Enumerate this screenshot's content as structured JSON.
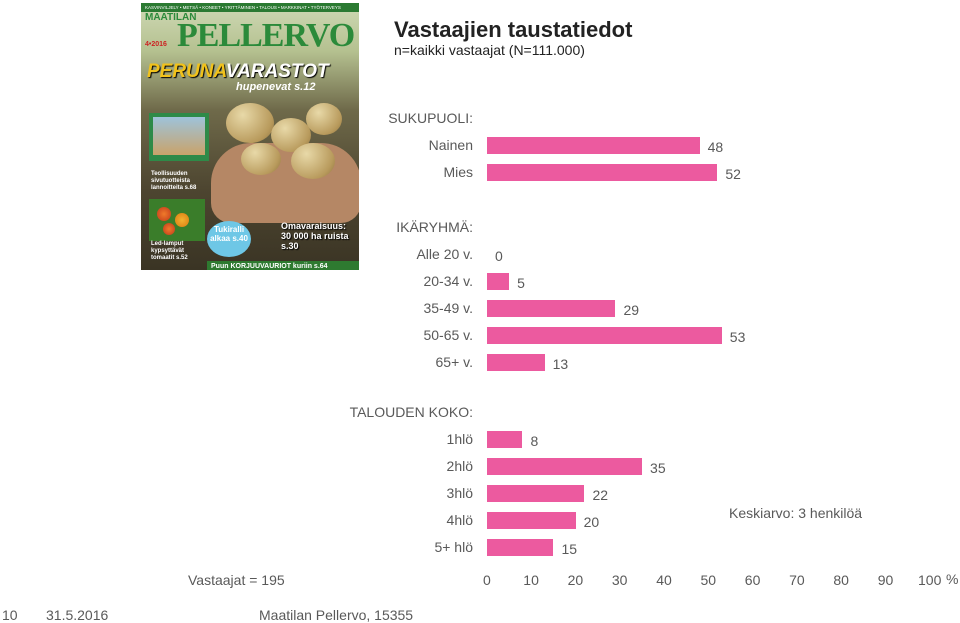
{
  "title": "Vastaajien taustatiedot",
  "subtitle": "n=kaikki vastaajat (N=111.000)",
  "respondents": "Vastaajat = 195",
  "mean_note": "Keskiarvo: 3 henkilöä",
  "footer": {
    "page": "10",
    "date": "31.5.2016",
    "source": "Maatilan Pellervo, 15355"
  },
  "cover": {
    "topbar": "KASVINVILJELY • METSÄ • KONEET • YRITTÄMINEN • TALOUS • MARKKINAT • TYÖTERVEYS",
    "mast_small": "MAATILAN",
    "mast_big": "PELLERVO",
    "issue": "4•2016",
    "headline_a": "PERUNA",
    "headline_b": "VARASTOT",
    "headline_2": "hupenevat s.12",
    "teaser1": "Teollisuuden sivutuotteista lannoitteita s.68",
    "teaser2": "Led-lamput kypsyttävät tomaatit s.52",
    "bubble": "Tukiralli alkaa s.40",
    "teaser3": "Omavaraisuus: 30 000 ha ruista s.30",
    "bottom": "Puun KORJUUVAURIOT kuriin s.64"
  },
  "chart_data": {
    "type": "bar",
    "orientation": "horizontal",
    "unit": "%",
    "xlim": [
      0,
      100
    ],
    "xticks": [
      "0",
      "10",
      "20",
      "30",
      "40",
      "50",
      "60",
      "70",
      "80",
      "90",
      "100"
    ],
    "bar_color": "#ec5a9f",
    "groups": [
      {
        "label": "SUKUPUOLI:",
        "categories": [
          "Nainen",
          "Mies"
        ],
        "values": [
          48,
          52
        ]
      },
      {
        "label": "IKÄRYHMÄ:",
        "categories": [
          "Alle 20 v.",
          "20-34 v.",
          "35-49 v.",
          "50-65 v.",
          "65+ v."
        ],
        "values": [
          0,
          5,
          29,
          53,
          13
        ]
      },
      {
        "label": "TALOUDEN KOKO:",
        "categories": [
          "1hlö",
          "2hlö",
          "3hlö",
          "4hlö",
          "5+ hlö"
        ],
        "values": [
          8,
          35,
          22,
          20,
          15
        ]
      }
    ]
  }
}
